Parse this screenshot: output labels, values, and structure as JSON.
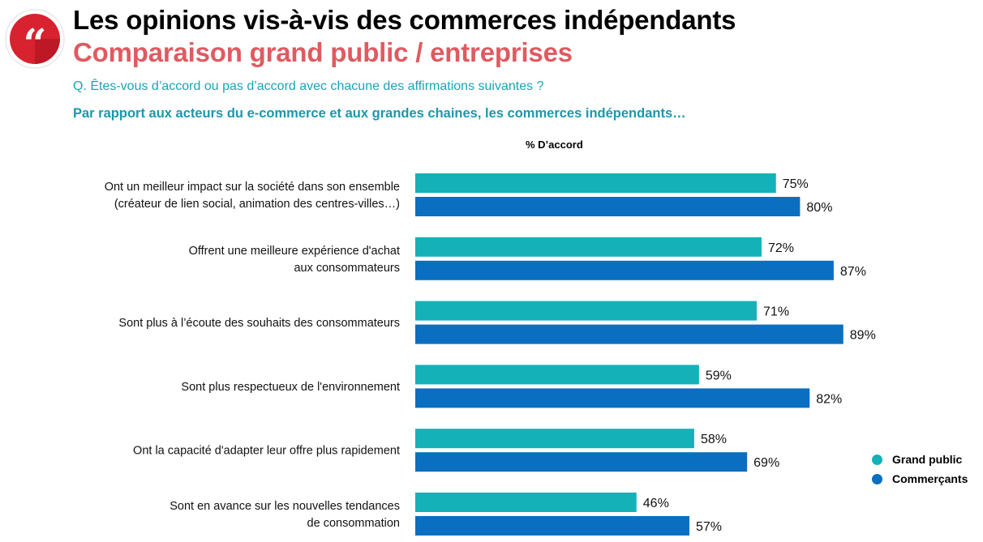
{
  "header": {
    "title": "Les opinions vis-à-vis des commerces indépendants",
    "subtitle": "Comparaison grand public / entreprises",
    "question": "Q. Êtes-vous d’accord ou pas d’accord avec chacune des affirmations suivantes ?",
    "context": "Par rapport aux acteurs du e-commerce et aux grandes chaines, les commerces indépendants…",
    "logo_icon": "quote-icon"
  },
  "colors": {
    "accent_red": "#e05a60",
    "grand_public": "#15b1b8",
    "commercants": "#0a6fc0"
  },
  "chart_data": {
    "type": "bar",
    "orientation": "horizontal",
    "axis_caption": "% D’accord",
    "categories": [
      [
        "Ont un meilleur impact sur la société dans son ensemble",
        "(créateur de lien social, animation des centres-villes…)"
      ],
      [
        "Offrent une meilleure expérience d'achat",
        "aux consommateurs"
      ],
      [
        "Sont plus à l’écoute des souhaits des consommateurs"
      ],
      [
        "Sont plus respectueux de l'environnement"
      ],
      [
        "Ont la capacité d'adapter leur offre plus rapidement"
      ],
      [
        "Sont en avance sur les nouvelles tendances",
        "de consommation"
      ]
    ],
    "series": [
      {
        "name": "Grand public",
        "values": [
          75,
          72,
          71,
          59,
          58,
          46
        ],
        "labels": [
          "75%",
          "72%",
          "71%",
          "59%",
          "58%",
          "46%"
        ]
      },
      {
        "name": "Commerçants",
        "values": [
          80,
          87,
          89,
          82,
          69,
          57
        ],
        "labels": [
          "80%",
          "87%",
          "89%",
          "82%",
          "69%",
          "57%"
        ]
      }
    ],
    "xlim": [
      0,
      100
    ],
    "grid": false,
    "legend_position": "bottom-right"
  }
}
